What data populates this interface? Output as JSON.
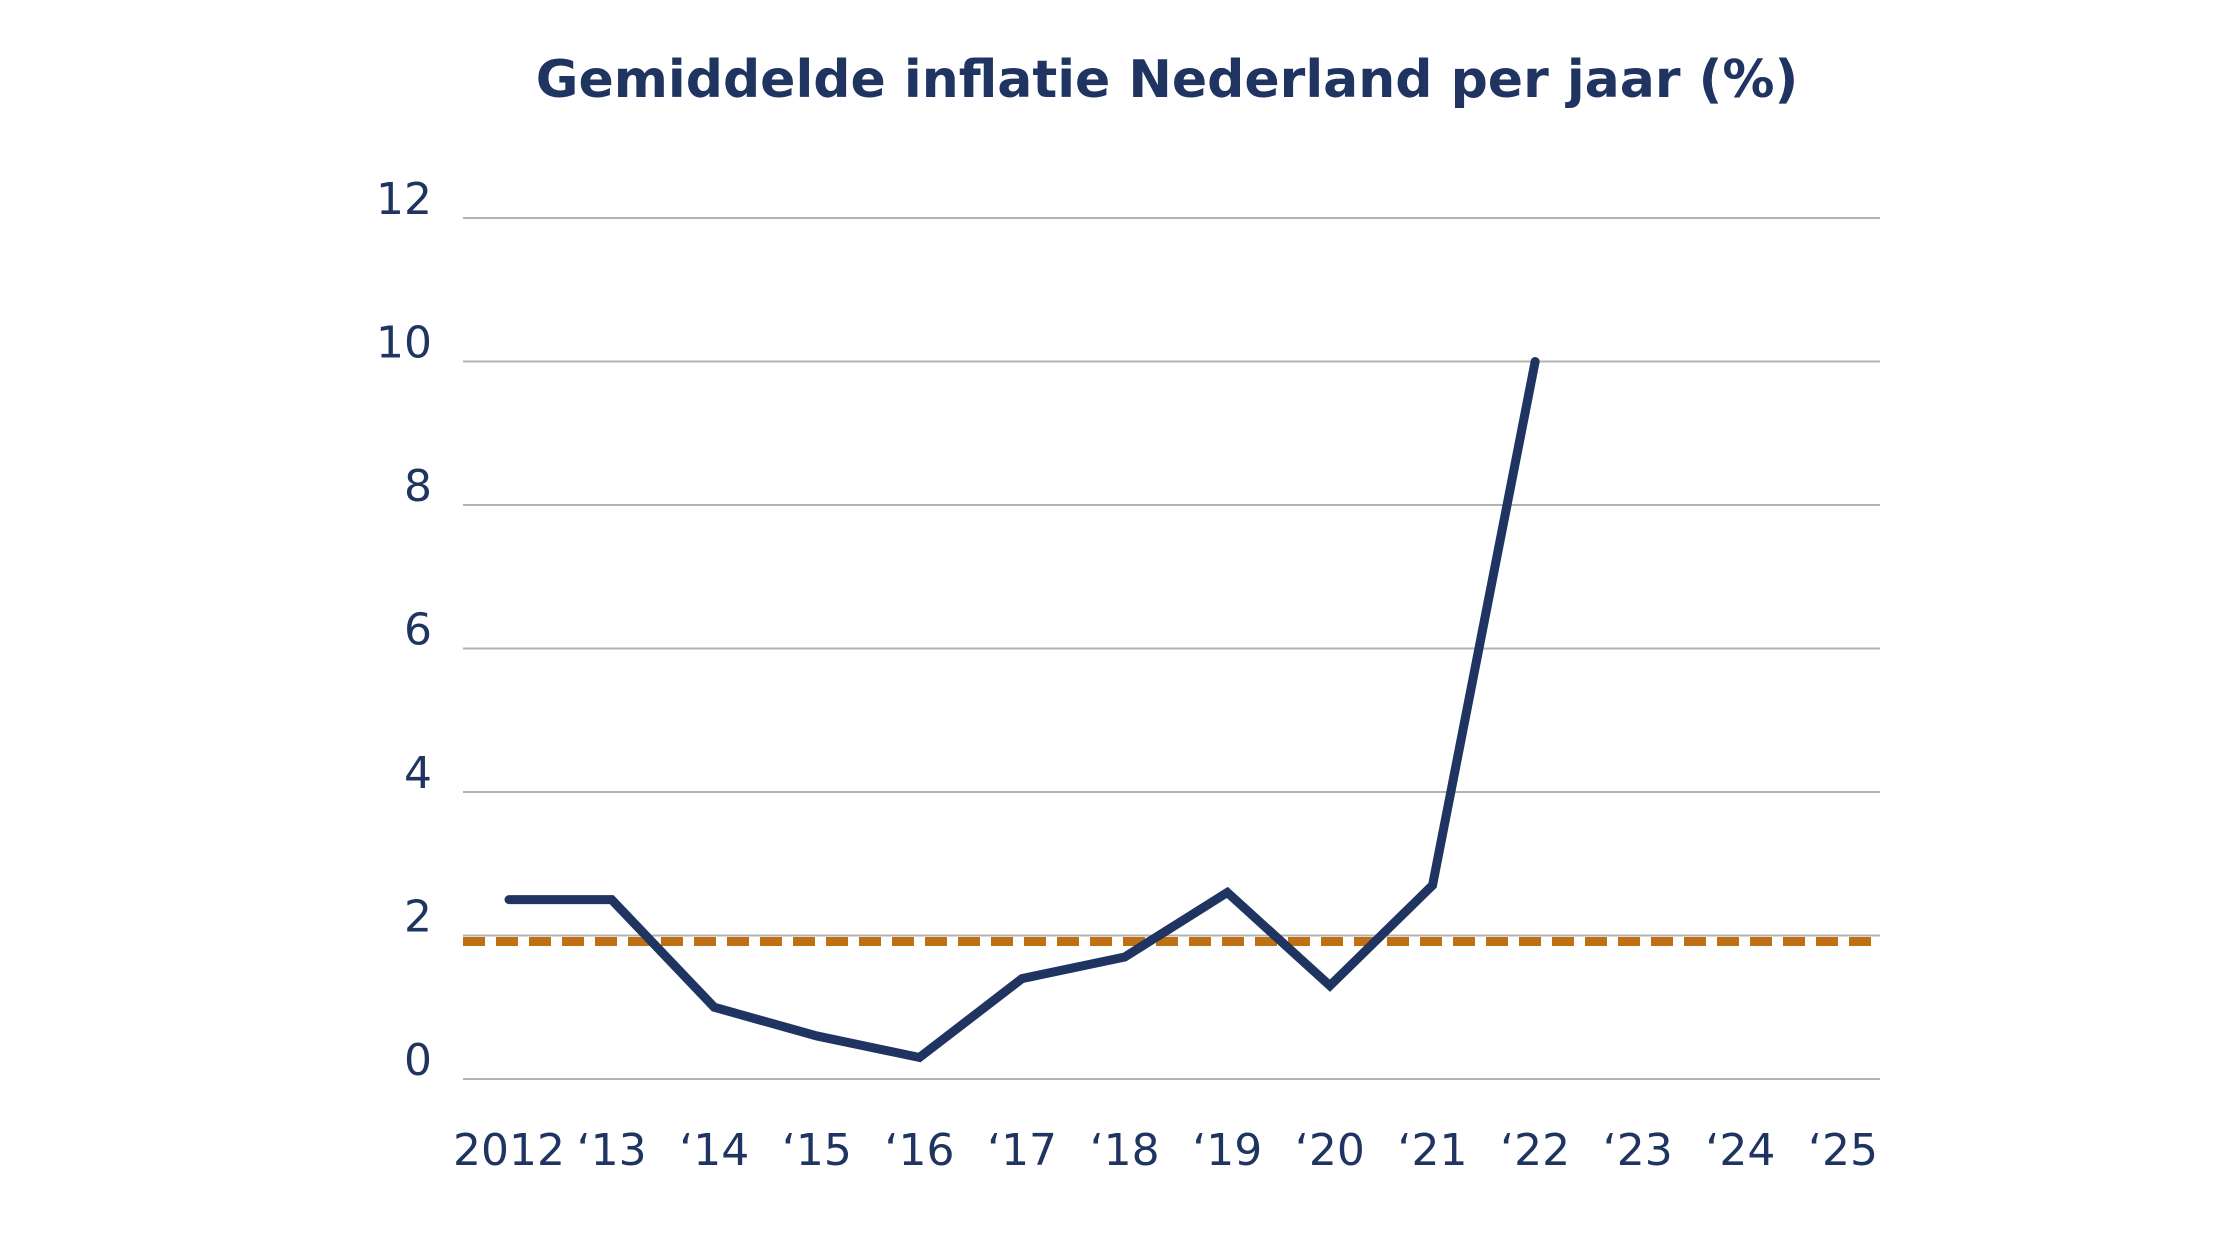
{
  "chart_data": {
    "type": "line",
    "title": "Gemiddelde inflatie Nederland per jaar (%)",
    "xlabel": "",
    "ylabel": "",
    "categories": [
      "2012",
      "‘13",
      "‘14",
      "‘15",
      "‘16",
      "‘17",
      "‘18",
      "‘19",
      "‘20",
      "‘21",
      "‘22",
      "‘23",
      "‘24",
      "‘25"
    ],
    "series": [
      {
        "values": [
          2.5,
          2.5,
          1.0,
          0.6,
          0.3,
          1.4,
          1.7,
          2.6,
          1.3,
          2.7,
          10.0,
          null,
          null,
          null
        ],
        "color": "#1f3461"
      }
    ],
    "reference_line": {
      "value": 2.0,
      "style": "dashed",
      "color": "#c07013"
    },
    "ylim": [
      0,
      12
    ],
    "yticks": [
      "0",
      "2",
      "4",
      "6",
      "8",
      "10",
      "12"
    ],
    "grid": "horizontal",
    "gridline_color": "#b3b3b3",
    "legend": "none"
  }
}
